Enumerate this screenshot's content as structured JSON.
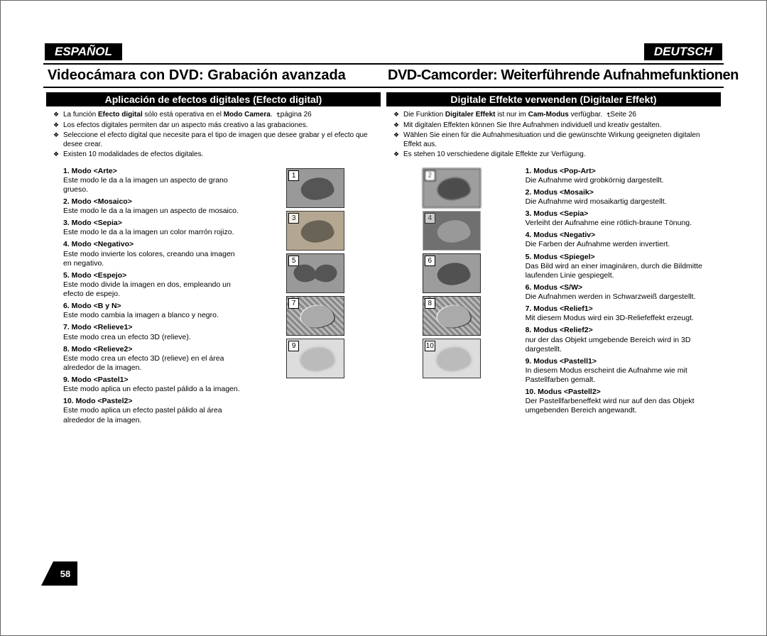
{
  "lang_left": "ESPAÑOL",
  "lang_right": "DEUTSCH",
  "title_left": "Videocámara con DVD: Grabación avanzada",
  "title_right": "DVD-Camcorder: Weiterführende Aufnahmefunktionen",
  "subtitle_left": "Aplicación de efectos digitales (Efecto digital)",
  "subtitle_right": "Digitale Effekte verwenden (Digitaler Effekt)",
  "bullets_es": [
    "La función <b>Efecto digital</b> sólo está operativa en el <b>Modo Camera</b>. <span class='ref-ico'>↵</span>página 26",
    "Los efectos digitales permiten dar un aspecto más creativo a las grabaciones.",
    "Seleccione el efecto digital que necesite para el tipo de imagen que desee grabar y el efecto que desee crear.",
    "Existen 10 modalidades de efectos digitales."
  ],
  "bullets_de": [
    "Die Funktion <b>Digitaler Effekt</b> ist nur im <b>Cam-Modus</b> verfügbar. <span class='ref-ico'>↵</span>Seite 26",
    "Mit digitalen Effekten können Sie Ihre Aufnahmen individuell und kreativ gestalten.",
    "Wählen Sie einen für die Aufnahmesituation und die gewünschte Wirkung geeigneten digitalen Effekt aus.",
    "Es stehen 10 verschiedene digitale Effekte zur Verfügung."
  ],
  "modes_es": [
    {
      "t": "1. Modo <Arte>",
      "d": "Este modo le da a la imagen un aspecto de grano grueso."
    },
    {
      "t": "2. Modo <Mosaico>",
      "d": "Este modo le da a la imagen un aspecto de mosaico."
    },
    {
      "t": "3. Modo <Sepia>",
      "d": "Este modo le da a la imagen un color marrón rojizo."
    },
    {
      "t": "4. Modo <Negativo>",
      "d": "Este modo invierte los colores, creando una imagen en negativo."
    },
    {
      "t": "5. Modo <Espejo>",
      "d": "Este modo divide la imagen en dos, empleando un efecto de espejo."
    },
    {
      "t": "6. Modo <B y N>",
      "d": "Este modo cambia la imagen a blanco y negro."
    },
    {
      "t": "7. Modo <Relieve1>",
      "d": "Este modo crea un efecto 3D (relieve)."
    },
    {
      "t": "8. Modo <Relieve2>",
      "d": "Este modo crea un efecto 3D (relieve) en el área alrededor de la imagen."
    },
    {
      "t": "9. Modo <Pastel1>",
      "d": "Este modo aplica un efecto pastel pálido a la imagen."
    },
    {
      "t": "10. Modo <Pastel2>",
      "d": "Este modo aplica un efecto pastel pálido al área alrededor de la imagen."
    }
  ],
  "modes_de": [
    {
      "t": "1. Modus <Pop-Art>",
      "d": "Die Aufnahme wird grobkörnig dargestellt."
    },
    {
      "t": "2. Modus <Mosaik>",
      "d": "Die Aufnahme wird mosaikartig dargestellt."
    },
    {
      "t": "3. Modus <Sepia>",
      "d": "Verleiht der Aufnahme eine rötlich-braune Tönung."
    },
    {
      "t": "4. Modus <Negativ>",
      "d": "Die Farben der Aufnahme werden invertiert."
    },
    {
      "t": "5. Modus <Spiegel>",
      "d": "Das Bild wird an einer imaginären, durch die Bildmitte laufenden Linie gespiegelt."
    },
    {
      "t": "6. Modus <S/W>",
      "d": "Die Aufnahmen werden in Schwarzweiß dargestellt."
    },
    {
      "t": "7. Modus <Relief1>",
      "d": "Mit diesem Modus wird ein 3D-Reliefeffekt erzeugt."
    },
    {
      "t": "8. Modus <Relief2>",
      "d": "nur der das Objekt umgebende Bereich wird in 3D dargestellt."
    },
    {
      "t": "9. Modus <Pastell1>",
      "d": "In diesem Modus erscheint die Aufnahme wie mit Pastellfarben gemalt."
    },
    {
      "t": "10. Modus <Pastell2>",
      "d": "Der Pastellfarbeneffekt wird nur auf den das Objekt umgebenden Bereich angewandt."
    }
  ],
  "thumb_numbers_left": [
    "1",
    "3",
    "5",
    "7",
    "9"
  ],
  "thumb_numbers_right": [
    "2",
    "4",
    "6",
    "8",
    "10"
  ],
  "thumb_styles_left": [
    "",
    "sepia",
    "mirror",
    "relief",
    "pastel"
  ],
  "thumb_styles_right": [
    "mosaic",
    "negativ",
    "bw",
    "relief",
    "pastel"
  ],
  "page_number": "58"
}
